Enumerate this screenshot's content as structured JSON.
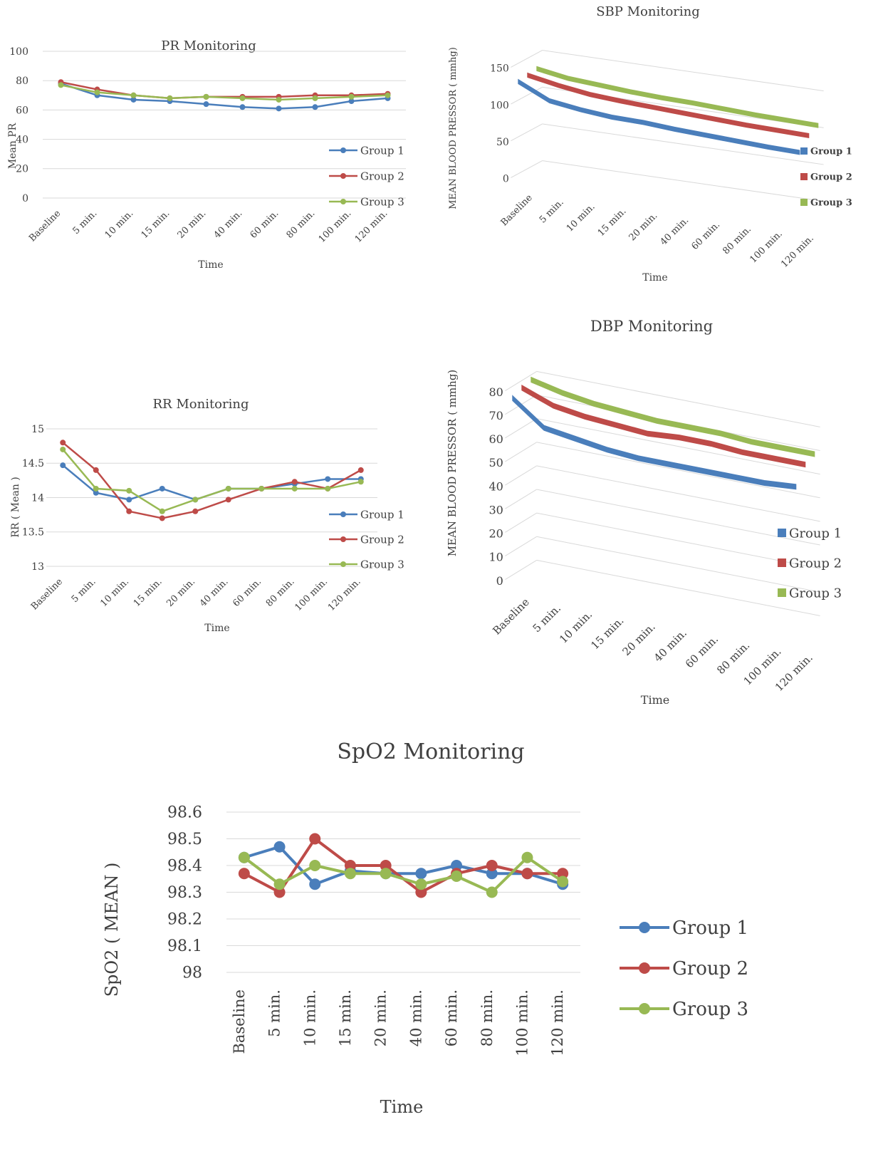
{
  "charts_meta": {
    "colors": {
      "group1": "#4a7ebb",
      "group2": "#be4b48",
      "group3": "#98b954",
      "grid": "#d9d9d9",
      "text": "#404040"
    }
  },
  "chart_data": [
    {
      "id": "pr",
      "type": "line",
      "title": "PR Monitoring",
      "xlabel": "Time",
      "ylabel": "Mean PR",
      "categories": [
        "Baseline",
        "5 min.",
        "10 min.",
        "15 min.",
        "20 min.",
        "40 min.",
        "60 min.",
        "80 min.",
        "100 min.",
        "120 min."
      ],
      "yticks": [
        "0",
        "20",
        "40",
        "60",
        "80",
        "100"
      ],
      "ylim": [
        0,
        100
      ],
      "grid": true,
      "legend": "right",
      "series": [
        {
          "name": "Group 1",
          "values": [
            78,
            70,
            67,
            66,
            64,
            62,
            61,
            62,
            66,
            68
          ]
        },
        {
          "name": "Group 2",
          "values": [
            79,
            74,
            70,
            68,
            69,
            69,
            69,
            70,
            70,
            71
          ]
        },
        {
          "name": "Group 3",
          "values": [
            77,
            72,
            70,
            68,
            69,
            68,
            67,
            68,
            69,
            70
          ]
        }
      ]
    },
    {
      "id": "sbp",
      "type": "line",
      "title": "SBP Monitoring",
      "xlabel": "Time",
      "ylabel": "MEAN BLOOD PRESSOR ( mmhg)",
      "categories": [
        "Baseline",
        "5 min.",
        "10 min.",
        "15 min.",
        "20 min.",
        "40 min.",
        "60 min.",
        "80 min.",
        "100 min.",
        "120 min."
      ],
      "yticks": [
        "0",
        "50",
        "100",
        "150"
      ],
      "ylim": [
        0,
        150
      ],
      "grid": true,
      "legend": "right",
      "series": [
        {
          "name": "Group 1",
          "values": [
            128,
            108,
            102,
            98,
            97,
            94,
            92,
            90,
            88,
            87
          ]
        },
        {
          "name": "Group 2",
          "values": [
            130,
            122,
            116,
            113,
            111,
            109,
            107,
            105,
            104,
            103
          ]
        },
        {
          "name": "Group 3",
          "values": [
            132,
            125,
            122,
            119,
            117,
            116,
            114,
            112,
            111,
            110
          ]
        }
      ]
    },
    {
      "id": "rr",
      "type": "line",
      "title": "RR Monitoring",
      "xlabel": "Time",
      "ylabel": "RR ( Mean )",
      "categories": [
        "Baseline",
        "5 min.",
        "10 min.",
        "15 min.",
        "20 min.",
        "40 min.",
        "60 min.",
        "80 min.",
        "100 min.",
        "120 min."
      ],
      "yticks": [
        "13",
        "13.5",
        "14",
        "14.5",
        "15"
      ],
      "ylim": [
        13,
        15
      ],
      "grid": true,
      "legend": "right",
      "series": [
        {
          "name": "Group 1",
          "values": [
            14.47,
            14.07,
            13.97,
            14.13,
            13.97,
            14.13,
            14.13,
            14.2,
            14.27,
            14.27
          ]
        },
        {
          "name": "Group 2",
          "values": [
            14.8,
            14.4,
            13.8,
            13.7,
            13.8,
            13.97,
            14.13,
            14.23,
            14.13,
            14.4
          ]
        },
        {
          "name": "Group 3",
          "values": [
            14.7,
            14.13,
            14.1,
            13.8,
            13.97,
            14.13,
            14.13,
            14.13,
            14.13,
            14.23
          ]
        }
      ]
    },
    {
      "id": "dbp",
      "type": "line",
      "title": "DBP Monitoring",
      "xlabel": "Time",
      "ylabel": "MEAN BLOOD PRESSOR ( mmhg)",
      "categories": [
        "Baseline",
        "5 min.",
        "10 min.",
        "15 min.",
        "20 min.",
        "40 min.",
        "60 min.",
        "80 min.",
        "100 min.",
        "120 min."
      ],
      "yticks": [
        "0",
        "10",
        "20",
        "30",
        "40",
        "50",
        "60",
        "70",
        "80"
      ],
      "ylim": [
        0,
        80
      ],
      "grid": true,
      "legend": "right",
      "series": [
        {
          "name": "Group 1",
          "values": [
            76,
            66,
            64,
            62,
            61,
            61,
            61,
            61,
            61,
            62
          ]
        },
        {
          "name": "Group 2",
          "values": [
            78,
            73,
            71,
            70,
            69,
            70,
            70,
            69,
            69,
            69
          ]
        },
        {
          "name": "Group 3",
          "values": [
            79,
            76,
            74,
            73,
            72,
            72,
            72,
            71,
            71,
            71
          ]
        }
      ]
    },
    {
      "id": "spo2",
      "type": "line",
      "title": "SpO2 Monitoring",
      "xlabel": "Time",
      "ylabel": "SpO2 ( MEAN )",
      "categories": [
        "Baseline",
        "5 min.",
        "10 min.",
        "15 min.",
        "20 min.",
        "40 min.",
        "60 min.",
        "80 min.",
        "100 min.",
        "120 min."
      ],
      "yticks": [
        "98",
        "98.1",
        "98.2",
        "98.3",
        "98.4",
        "98.5",
        "98.6"
      ],
      "ylim": [
        98,
        98.6
      ],
      "grid": true,
      "legend": "right",
      "series": [
        {
          "name": "Group 1",
          "values": [
            98.43,
            98.47,
            98.33,
            98.38,
            98.37,
            98.37,
            98.4,
            98.37,
            98.37,
            98.33
          ]
        },
        {
          "name": "Group 2",
          "values": [
            98.37,
            98.3,
            98.5,
            98.4,
            98.4,
            98.3,
            98.37,
            98.4,
            98.37,
            98.37
          ]
        },
        {
          "name": "Group 3",
          "values": [
            98.43,
            98.33,
            98.4,
            98.37,
            98.37,
            98.33,
            98.36,
            98.3,
            98.43,
            98.34
          ]
        }
      ]
    }
  ]
}
